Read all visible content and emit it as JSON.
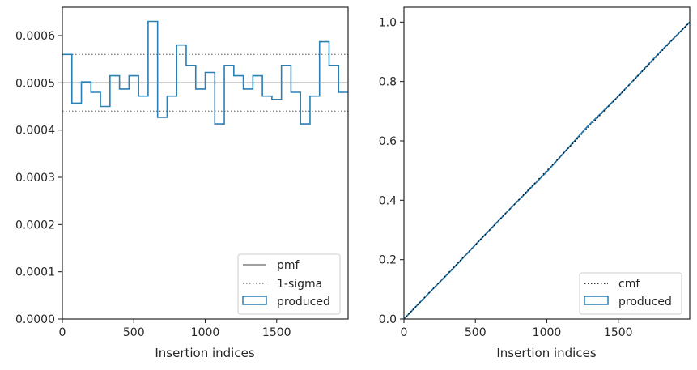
{
  "colors": {
    "produced": "#2a7fb4",
    "pmf": "#808080",
    "sigma": "#808080",
    "cmf": "#000000",
    "axes": "#262626"
  },
  "chart_data": [
    {
      "type": "step",
      "xlabel": "Insertion indices",
      "ylabel": "",
      "xlim": [
        0,
        2000
      ],
      "ylim": [
        0,
        0.00066
      ],
      "x_ticks": [
        0,
        500,
        1000,
        1500
      ],
      "x_tick_labels": [
        "0",
        "500",
        "1000",
        "1500"
      ],
      "y_ticks": [
        0,
        0.0001,
        0.0002,
        0.0003,
        0.0004,
        0.0005,
        0.0006
      ],
      "y_tick_labels": [
        "0.0000",
        "0.0001",
        "0.0002",
        "0.0003",
        "0.0004",
        "0.0005",
        "0.0006"
      ],
      "legend_position": "bottom-right",
      "legend": [
        "pmf",
        "1-sigma",
        "produced"
      ],
      "pmf": 0.0005,
      "sigma_lines": [
        0.00044,
        0.00056
      ],
      "bin_width": 66.67,
      "produced": [
        0.00056,
        0.000457,
        0.000502,
        0.00048,
        0.00045,
        0.000515,
        0.000487,
        0.000515,
        0.000472,
        0.00063,
        0.000427,
        0.000472,
        0.00058,
        0.000537,
        0.000487,
        0.000522,
        0.000413,
        0.000537,
        0.000515,
        0.000487,
        0.000515,
        0.000472,
        0.000465,
        0.000537,
        0.00048,
        0.000413,
        0.000472,
        0.000587,
        0.000537,
        0.00048
      ]
    },
    {
      "type": "line",
      "xlabel": "Insertion indices",
      "ylabel": "",
      "xlim": [
        0,
        2000
      ],
      "ylim": [
        0,
        1.05
      ],
      "x_ticks": [
        0,
        500,
        1000,
        1500
      ],
      "x_tick_labels": [
        "0",
        "500",
        "1000",
        "1500"
      ],
      "y_ticks": [
        0,
        0.2,
        0.4,
        0.6,
        0.8,
        1.0
      ],
      "y_tick_labels": [
        "0.0",
        "0.2",
        "0.4",
        "0.6",
        "0.8",
        "1.0"
      ],
      "legend_position": "bottom-right",
      "legend": [
        "cmf",
        "produced"
      ],
      "cmf": [
        [
          0,
          0
        ],
        [
          2000,
          1
        ]
      ],
      "produced": [
        [
          0,
          0
        ],
        [
          200,
          0.1
        ],
        [
          340,
          0.168
        ],
        [
          500,
          0.25
        ],
        [
          720,
          0.36
        ],
        [
          1000,
          0.496
        ],
        [
          1280,
          0.646
        ],
        [
          1500,
          0.75
        ],
        [
          1800,
          0.903
        ],
        [
          2000,
          1.0
        ]
      ]
    }
  ]
}
